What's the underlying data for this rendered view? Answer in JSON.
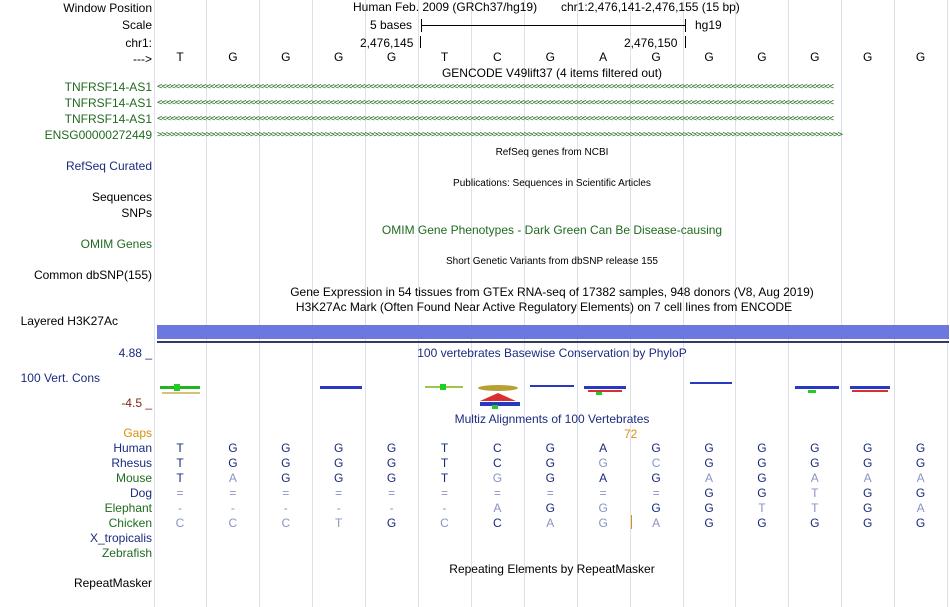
{
  "labels": {
    "window_position": "Window Position",
    "scale": "Scale",
    "chrom": "chr1:",
    "arrow": "--->",
    "gene1": "TNFRSF14-AS1",
    "gene2": "TNFRSF14-AS1",
    "gene3": "TNFRSF14-AS1",
    "gene4": "ENSG00000272449",
    "refseq": "RefSeq Curated",
    "sequences": "Sequences",
    "snps": "SNPs",
    "omim": "OMIM Genes",
    "dbsnp": "Common dbSNP(155)",
    "h3k27ac": "Layered H3K27Ac",
    "cons_max": "4.88 _",
    "cons_label": "100 Vert. Cons",
    "cons_min": "-4.5 _",
    "gaps": "Gaps",
    "human": "Human",
    "rhesus": "Rhesus",
    "mouse": "Mouse",
    "dog": "Dog",
    "elephant": "Elephant",
    "chicken": "Chicken",
    "x_tropicalis": "X_tropicalis",
    "zebrafish": "Zebrafish",
    "repeatmasker": "RepeatMasker"
  },
  "header": {
    "assembly": "Human Feb. 2009 (GRCh37/hg19)",
    "position": "chr1:2,476,141-2,476,155 (15 bp)",
    "scale_text": "5 bases",
    "db": "hg19",
    "coord1": "2,476,145",
    "coord2": "2,476,150"
  },
  "titles": {
    "gencode": "GENCODE V49lift37 (4 items filtered out)",
    "refseq": "RefSeq genes from NCBI",
    "publications": "Publications: Sequences in Scientific Articles",
    "omim": "OMIM Gene Phenotypes - Dark Green Can Be Disease-causing",
    "dbsnp": "Short Genetic Variants from dbSNP release 155",
    "gtex": "Gene Expression in 54 tissues from GTEx RNA-seq of 17382 samples, 948 donors (V8, Aug 2019)",
    "h3k27ac": "H3K27Ac Mark (Often Found Near Active Regulatory Elements) on 7 cell lines from ENCODE",
    "phylop": "100 vertebrates Basewise Conservation by PhyloP",
    "multiz": "Multiz Alignments of 100 Vertebrates",
    "repeatmasker": "Repeating Elements by RepeatMasker"
  },
  "gaps_value": "72",
  "gene_strands": {
    "minus": "<<<<<<<<<<<<<<<<<<<<<<<<<<<<<<<<<<<<<<<<<<<<<<<<<<<<<<<<<<<<<<<<<<<<<<<<<<<<<<<<<<<<<<<<<<<<<<<<<<<<<<<<<<<<<<<<<<<<<<<<<<<<<<<<<<<<<<<<<<<<<<<<<<<<<<<<<",
    "plus": ">>>>>>>>>>>>>>>>>>>>>>>>>>>>>>>>>>>>>>>>>>>>>>>>>>>>>>>>>>>>>>>>>>>>>>>>>>>>>>>>>>>>>>>>>>>>>>>>>>>>>>>>>>>>>>>>>>>>>>>>>>>>>>>>>>>>>>>>>>>>>>>>>>>>>>>>>>>"
  },
  "reference_bases": [
    "T",
    "G",
    "G",
    "G",
    "G",
    "T",
    "C",
    "G",
    "A",
    "G",
    "G",
    "G",
    "G",
    "G",
    "G"
  ],
  "alignment": [
    {
      "species": "human",
      "bases": [
        "T",
        "G",
        "G",
        "G",
        "G",
        "T",
        "C",
        "G",
        "A",
        "G",
        "G",
        "G",
        "G",
        "G",
        "G"
      ],
      "dim": [
        0,
        0,
        0,
        0,
        0,
        0,
        0,
        0,
        0,
        0,
        0,
        0,
        0,
        0,
        0
      ]
    },
    {
      "species": "rhesus",
      "bases": [
        "T",
        "G",
        "G",
        "G",
        "G",
        "T",
        "C",
        "G",
        "G",
        "C",
        "G",
        "G",
        "G",
        "G",
        "G"
      ],
      "dim": [
        0,
        0,
        0,
        0,
        0,
        0,
        0,
        0,
        1,
        1,
        0,
        0,
        0,
        0,
        0
      ]
    },
    {
      "species": "mouse",
      "bases": [
        "T",
        "A",
        "G",
        "G",
        "G",
        "T",
        "G",
        "G",
        "A",
        "G",
        "A",
        "G",
        "A",
        "A",
        "A"
      ],
      "dim": [
        0,
        1,
        0,
        0,
        0,
        0,
        1,
        0,
        0,
        0,
        1,
        0,
        1,
        1,
        1
      ]
    },
    {
      "species": "dog",
      "bases": [
        "=",
        "=",
        "=",
        "=",
        "=",
        "=",
        "=",
        "=",
        "=",
        "=",
        "G",
        "G",
        "T",
        "G",
        "G"
      ],
      "dim": [
        1,
        1,
        1,
        1,
        1,
        1,
        1,
        1,
        1,
        1,
        0,
        0,
        1,
        0,
        0
      ]
    },
    {
      "species": "elephant",
      "bases": [
        "-",
        "-",
        "-",
        "-",
        "-",
        "-",
        "A",
        "G",
        "G",
        "G",
        "G",
        "T",
        "T",
        "G",
        "A"
      ],
      "dim": [
        1,
        1,
        1,
        1,
        1,
        1,
        1,
        0,
        1,
        0,
        0,
        1,
        1,
        0,
        1
      ]
    },
    {
      "species": "chicken",
      "bases": [
        "C",
        "C",
        "C",
        "T",
        "G",
        "C",
        "C",
        "A",
        "G",
        "A",
        "G",
        "G",
        "G",
        "G",
        "G"
      ],
      "dim": [
        1,
        1,
        1,
        1,
        0,
        1,
        0,
        1,
        1,
        1,
        0,
        0,
        0,
        0,
        0
      ]
    }
  ]
}
